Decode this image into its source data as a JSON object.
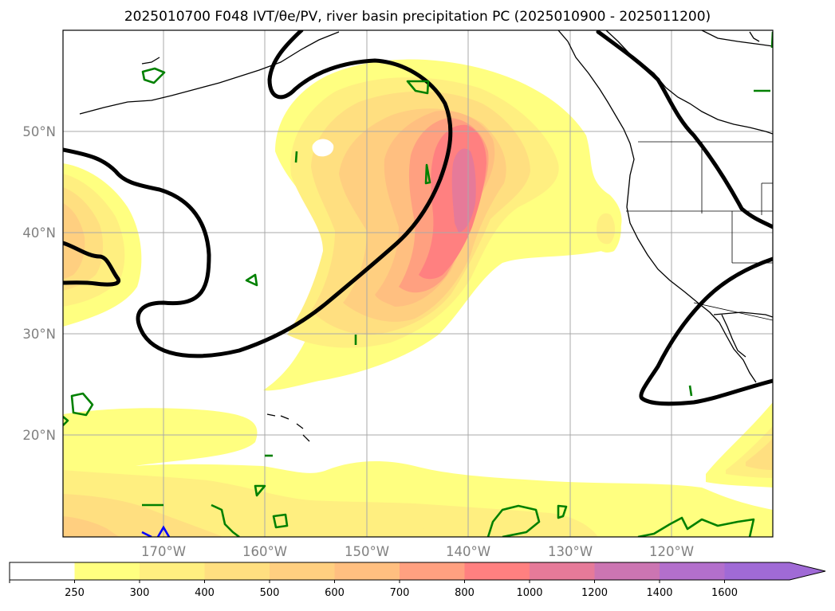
{
  "title": "2025010700 F048 IVT/θe/PV, river basin precipitation PC (2025010900 - 2025011200)",
  "map": {
    "lat_labels": [
      "50°N",
      "40°N",
      "30°N",
      "20°N"
    ],
    "lon_labels": [
      "170°W",
      "160°W",
      "150°W",
      "140°W",
      "130°W",
      "120°W"
    ],
    "fill_colors": [
      "#ffff80",
      "#ffef80",
      "#ffdf80",
      "#ffcf80",
      "#ffbf80",
      "#ffa080",
      "#ff8080",
      "#e67a99",
      "#cc75b2",
      "#b36fcc",
      "#a06ad6"
    ],
    "contour_color": "#000000",
    "pv_color": "#008000",
    "other_color": "#0000ff"
  },
  "colorbar": {
    "ticks": [
      "250",
      "300",
      "400",
      "500",
      "600",
      "700",
      "800",
      "1000",
      "1200",
      "1400",
      "1600"
    ],
    "colors": [
      "#ffffff",
      "#ffff80",
      "#ffef80",
      "#ffdf80",
      "#ffcf80",
      "#ffbf80",
      "#ffa080",
      "#ff8080",
      "#e67a99",
      "#cc75b2",
      "#b36fcc",
      "#a06ad6"
    ],
    "extend": "max"
  }
}
